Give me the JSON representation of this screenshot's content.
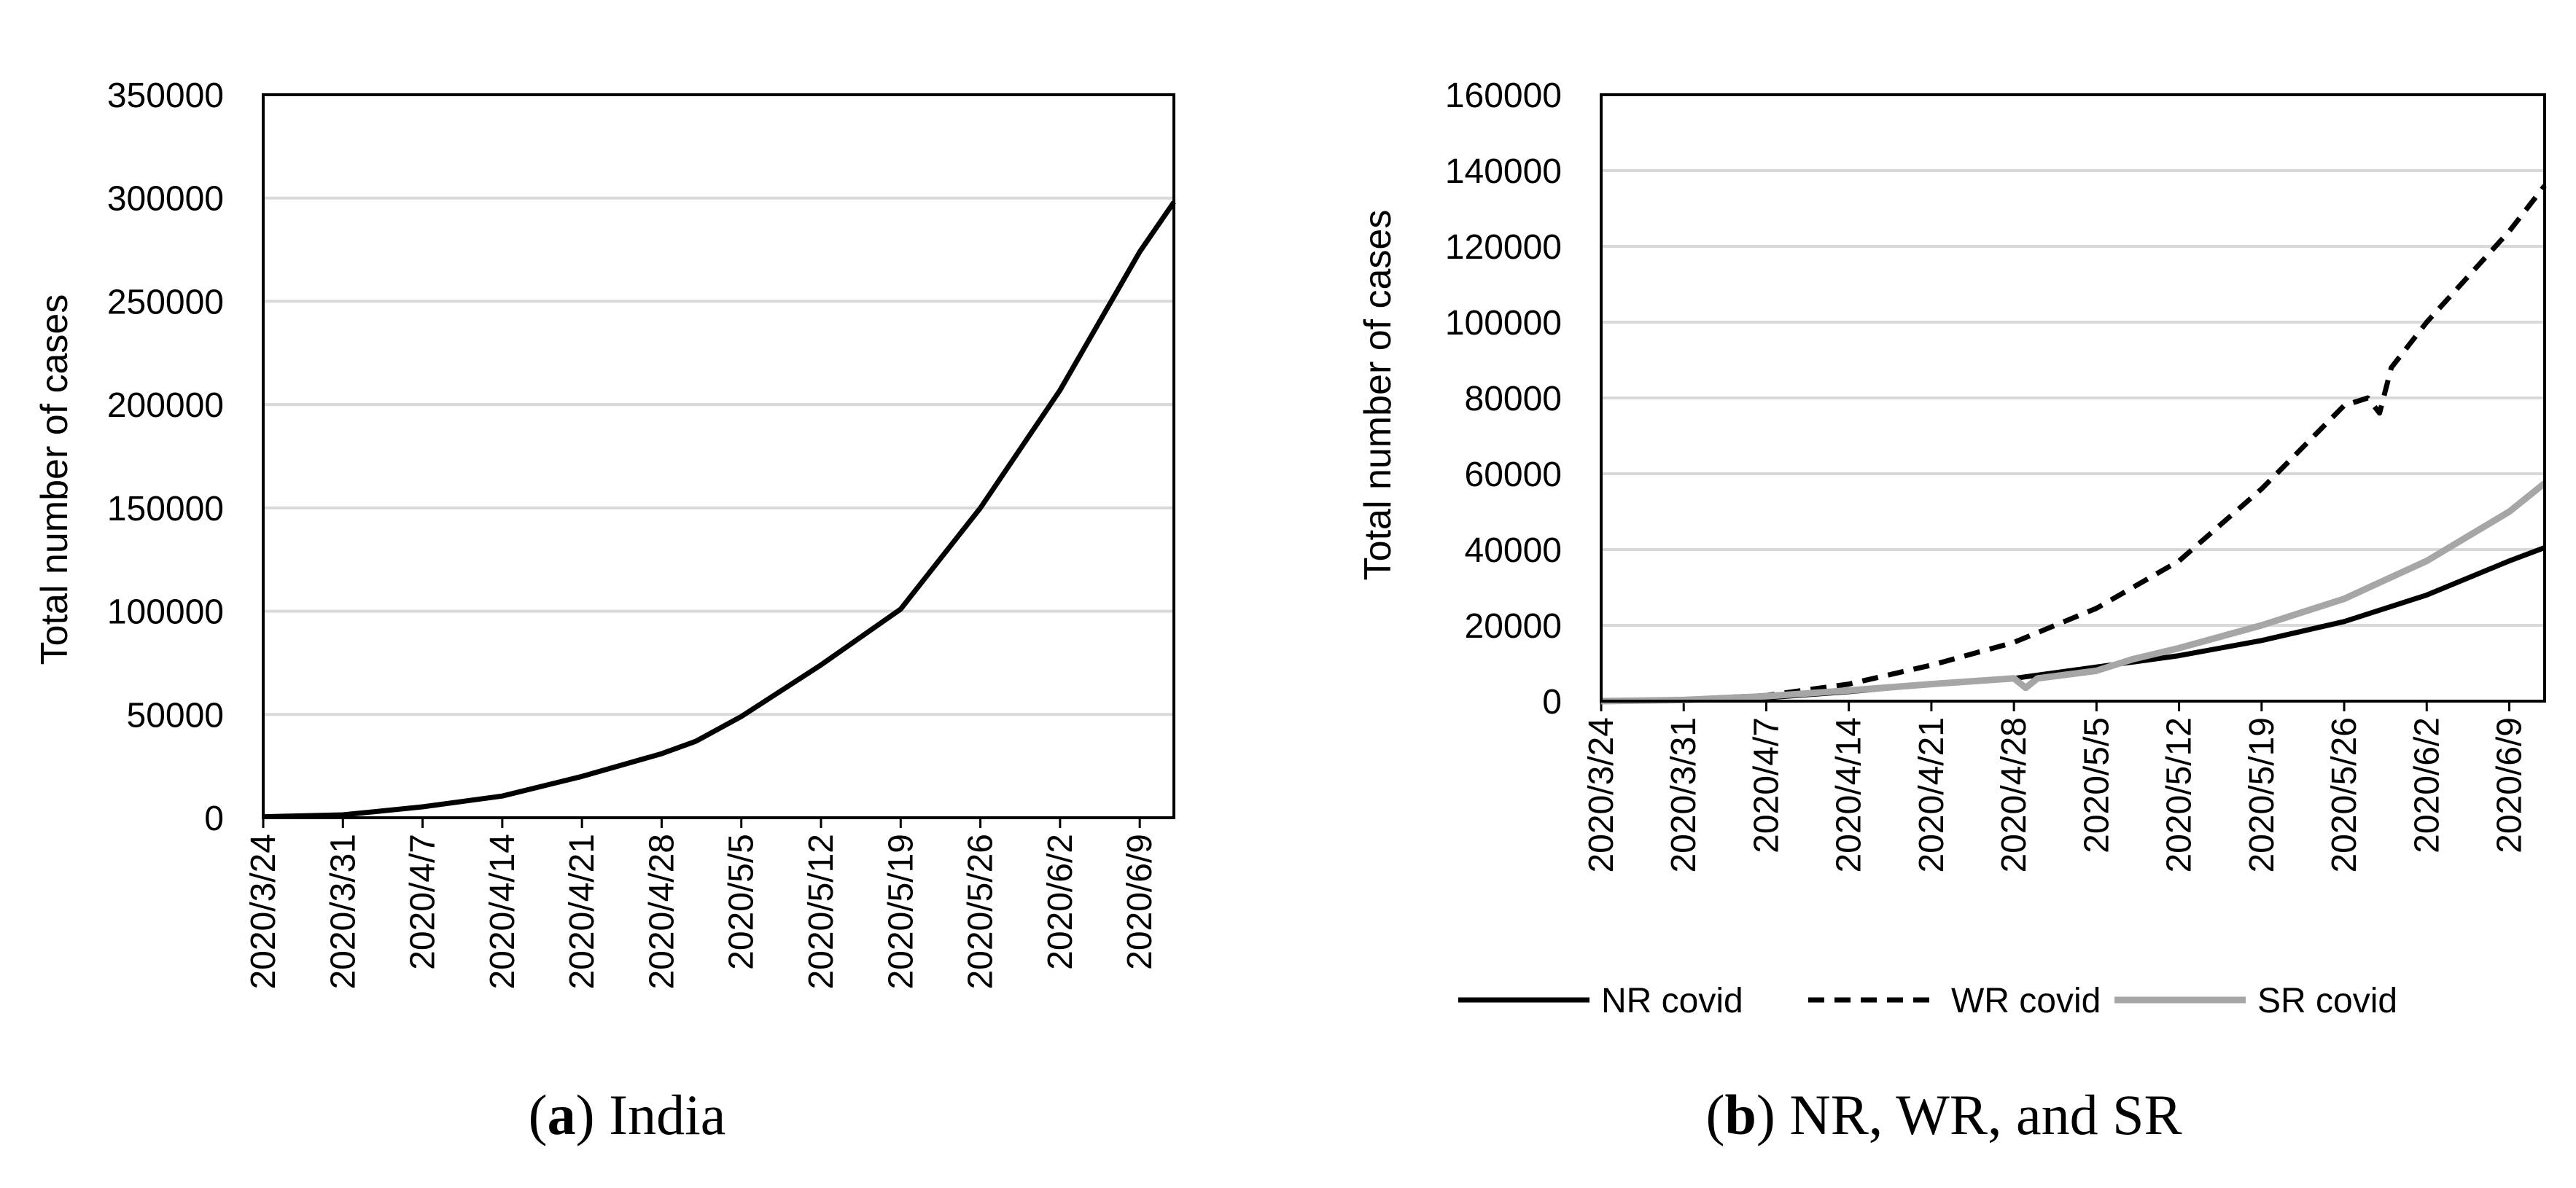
{
  "colors": {
    "background": "#ffffff",
    "axis": "#000000",
    "grid": "#d9d9d9",
    "nr": "#000000",
    "wr": "#000000",
    "sr": "#a6a6a6"
  },
  "panels": [
    {
      "caption_letter": "a",
      "caption_text": " India",
      "ylabel": "Total number of cases"
    },
    {
      "caption_letter": "b",
      "caption_text": " NR, WR, and SR",
      "ylabel": "Total number of cases"
    }
  ],
  "chart_data": [
    {
      "type": "line",
      "title": "",
      "xlabel": "",
      "ylabel": "Total number of cases",
      "xlim": [
        "2020/3/24",
        "2020/6/12"
      ],
      "ylim": [
        0,
        350000
      ],
      "yticks": [
        0,
        50000,
        100000,
        150000,
        200000,
        250000,
        300000,
        350000
      ],
      "xtick_labels": [
        "2020/3/24",
        "2020/3/31",
        "2020/4/7",
        "2020/4/14",
        "2020/4/21",
        "2020/4/28",
        "2020/5/5",
        "2020/5/12",
        "2020/5/19",
        "2020/5/26",
        "2020/6/2",
        "2020/6/9"
      ],
      "grid": true,
      "legend": "none",
      "series": [
        {
          "color": "#000000",
          "dash": "solid",
          "x": [
            "2020/3/24",
            "2020/3/31",
            "2020/4/7",
            "2020/4/14",
            "2020/4/21",
            "2020/4/28",
            "2020/5/1",
            "2020/5/5",
            "2020/5/12",
            "2020/5/19",
            "2020/5/26",
            "2020/6/2",
            "2020/6/9",
            "2020/6/12"
          ],
          "values": [
            500,
            1400,
            5300,
            10500,
            20000,
            31000,
            37000,
            49000,
            74000,
            101000,
            150000,
            207000,
            274000,
            298000
          ]
        }
      ]
    },
    {
      "type": "line",
      "title": "",
      "xlabel": "",
      "ylabel": "Total number of cases",
      "xlim": [
        "2020/3/24",
        "2020/6/12"
      ],
      "ylim": [
        0,
        160000
      ],
      "yticks": [
        0,
        20000,
        40000,
        60000,
        80000,
        100000,
        120000,
        140000,
        160000
      ],
      "xtick_labels": [
        "2020/3/24",
        "2020/3/31",
        "2020/4/7",
        "2020/4/14",
        "2020/4/21",
        "2020/4/28",
        "2020/5/5",
        "2020/5/12",
        "2020/5/19",
        "2020/5/26",
        "2020/6/2",
        "2020/6/9"
      ],
      "grid": true,
      "legend": "bottom",
      "series": [
        {
          "name": "NR covid",
          "color": "#000000",
          "dash": "solid",
          "x": [
            "2020/3/24",
            "2020/3/31",
            "2020/4/7",
            "2020/4/14",
            "2020/4/21",
            "2020/4/28",
            "2020/5/5",
            "2020/5/12",
            "2020/5/19",
            "2020/5/26",
            "2020/6/2",
            "2020/6/9",
            "2020/6/12"
          ],
          "values": [
            0,
            300,
            900,
            2500,
            4500,
            6000,
            9000,
            12000,
            16000,
            21000,
            28000,
            37000,
            40500
          ]
        },
        {
          "name": "WR covid",
          "color": "#000000",
          "dash": "dashed",
          "x": [
            "2020/3/24",
            "2020/3/31",
            "2020/4/7",
            "2020/4/14",
            "2020/4/21",
            "2020/4/28",
            "2020/5/5",
            "2020/5/12",
            "2020/5/19",
            "2020/5/26",
            "2020/5/28",
            "2020/5/29",
            "2020/5/30",
            "2020/6/2",
            "2020/6/9",
            "2020/6/12"
          ],
          "values": [
            0,
            400,
            1500,
            4500,
            9500,
            15500,
            24500,
            37000,
            56000,
            78000,
            80000,
            76000,
            88000,
            100000,
            124000,
            136000
          ]
        },
        {
          "name": "SR covid",
          "color": "#a6a6a6",
          "dash": "solid",
          "x": [
            "2020/3/24",
            "2020/3/31",
            "2020/4/7",
            "2020/4/14",
            "2020/4/21",
            "2020/4/28",
            "2020/4/29",
            "2020/4/30",
            "2020/5/5",
            "2020/5/8",
            "2020/5/12",
            "2020/5/19",
            "2020/5/26",
            "2020/6/2",
            "2020/6/9",
            "2020/6/12"
          ],
          "values": [
            0,
            300,
            1300,
            2800,
            4500,
            6000,
            3500,
            6000,
            8000,
            11000,
            14000,
            20000,
            27000,
            37000,
            50000,
            57500
          ]
        }
      ]
    }
  ]
}
